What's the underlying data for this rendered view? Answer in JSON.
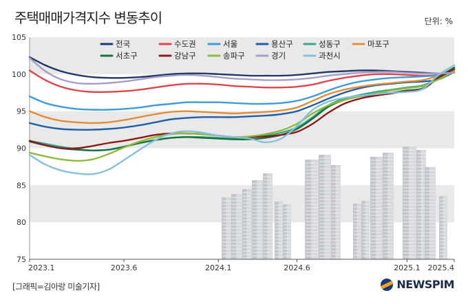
{
  "title": "주택매매가격지수 변동추이",
  "unit": "단위: %",
  "credit": "[그래픽=김아랑 미술기자]",
  "brand": "NEWSPIM",
  "chart_data": {
    "type": "line",
    "title": "주택매매가격지수 변동추이",
    "ylim": [
      75,
      105
    ],
    "yticks": [
      75,
      80,
      85,
      90,
      95,
      100,
      105
    ],
    "xlim": [
      0,
      27
    ],
    "x": [
      0,
      1,
      2,
      3,
      4,
      5,
      6,
      7,
      8,
      9,
      10,
      11,
      12,
      13,
      14,
      15,
      16,
      17,
      18,
      19,
      20,
      21,
      22,
      23,
      24,
      25,
      26,
      27
    ],
    "xticks": [
      {
        "x": 0,
        "label": "2023.1"
      },
      {
        "x": 6,
        "label": "2023.6"
      },
      {
        "x": 12,
        "label": "2024.1"
      },
      {
        "x": 17,
        "label": "2024.6"
      },
      {
        "x": 24,
        "label": "2025.1"
      },
      {
        "x": 27,
        "label": "2025.4"
      }
    ],
    "series": [
      {
        "name": "전국",
        "color": "#1f3864",
        "values": [
          102.3,
          101.2,
          100.4,
          99.9,
          99.6,
          99.5,
          99.5,
          99.6,
          99.8,
          100.0,
          100.1,
          100.1,
          100.0,
          99.9,
          99.8,
          99.8,
          99.8,
          99.9,
          100.1,
          100.3,
          100.4,
          100.5,
          100.5,
          100.4,
          100.3,
          100.2,
          100.1,
          100.2
        ]
      },
      {
        "name": "수도권",
        "color": "#e0444b",
        "values": [
          100.5,
          99.2,
          98.3,
          97.8,
          97.6,
          97.6,
          97.7,
          97.9,
          98.2,
          98.5,
          98.7,
          98.7,
          98.6,
          98.4,
          98.3,
          98.2,
          98.2,
          98.3,
          98.6,
          99.1,
          99.5,
          99.8,
          100.0,
          100.0,
          99.9,
          99.8,
          99.9,
          100.3
        ]
      },
      {
        "name": "서울",
        "color": "#3d9bd6",
        "values": [
          97.0,
          96.1,
          95.6,
          95.3,
          95.2,
          95.2,
          95.3,
          95.5,
          95.8,
          96.0,
          96.2,
          96.2,
          96.2,
          96.1,
          96.0,
          96.0,
          96.1,
          96.4,
          97.0,
          97.8,
          98.5,
          99.0,
          99.3,
          99.5,
          99.6,
          99.7,
          99.9,
          100.6
        ]
      },
      {
        "name": "용산구",
        "color": "#1f5fa8",
        "values": [
          93.4,
          92.9,
          92.6,
          92.5,
          92.5,
          92.6,
          92.8,
          93.1,
          93.5,
          93.9,
          94.1,
          94.2,
          94.2,
          94.2,
          94.3,
          94.4,
          94.6,
          95.0,
          95.8,
          96.7,
          97.5,
          98.1,
          98.5,
          98.7,
          98.9,
          99.0,
          99.3,
          100.3
        ]
      },
      {
        "name": "성동구",
        "color": "#3aa38a",
        "values": [
          91.0,
          90.6,
          90.2,
          89.9,
          89.7,
          89.8,
          90.2,
          90.7,
          91.1,
          91.4,
          91.5,
          91.5,
          91.4,
          91.3,
          91.4,
          91.7,
          92.1,
          92.8,
          94.2,
          95.8,
          96.7,
          97.2,
          97.6,
          97.9,
          98.2,
          98.5,
          99.4,
          100.6
        ]
      },
      {
        "name": "마포구",
        "color": "#e78a34",
        "values": [
          95.0,
          94.2,
          93.7,
          93.5,
          93.4,
          93.5,
          93.8,
          94.2,
          94.6,
          94.9,
          95.0,
          94.9,
          94.8,
          94.7,
          94.8,
          94.9,
          95.1,
          95.5,
          96.4,
          97.3,
          97.9,
          98.3,
          98.6,
          98.8,
          99.0,
          99.2,
          99.8,
          100.6
        ]
      },
      {
        "name": "서초구",
        "color": "#15723f",
        "values": [
          90.9,
          90.4,
          90.0,
          89.8,
          89.7,
          89.8,
          90.2,
          90.7,
          91.1,
          91.4,
          91.5,
          91.4,
          91.3,
          91.2,
          91.2,
          91.4,
          91.8,
          92.6,
          94.0,
          95.6,
          96.5,
          97.0,
          97.3,
          97.5,
          97.8,
          98.1,
          99.6,
          100.9
        ]
      },
      {
        "name": "강남구",
        "color": "#8b1a1a",
        "values": [
          91.0,
          90.4,
          90.0,
          90.0,
          90.3,
          90.7,
          91.0,
          91.4,
          91.8,
          92.0,
          92.0,
          91.9,
          91.7,
          91.5,
          91.5,
          91.6,
          91.8,
          92.2,
          93.3,
          94.8,
          96.0,
          96.7,
          97.1,
          97.4,
          97.7,
          98.0,
          99.5,
          100.7
        ]
      },
      {
        "name": "송파구",
        "color": "#8dba3b",
        "values": [
          89.4,
          88.9,
          88.5,
          88.3,
          88.5,
          89.2,
          90.1,
          90.9,
          91.5,
          91.9,
          92.0,
          91.9,
          91.7,
          91.5,
          91.6,
          91.9,
          92.4,
          93.3,
          94.7,
          95.8,
          96.5,
          97.0,
          97.4,
          97.8,
          98.1,
          98.4,
          99.3,
          100.4
        ]
      },
      {
        "name": "경기",
        "color": "#a99bc8",
        "values": [
          102.2,
          100.4,
          99.3,
          98.8,
          98.7,
          98.8,
          99.0,
          99.3,
          99.6,
          99.8,
          99.9,
          99.8,
          99.6,
          99.4,
          99.3,
          99.2,
          99.2,
          99.3,
          99.5,
          99.8,
          100.0,
          100.2,
          100.3,
          100.3,
          100.2,
          100.1,
          100.1,
          100.2
        ]
      },
      {
        "name": "과천시",
        "color": "#86c0dc",
        "values": [
          89.1,
          87.8,
          87.0,
          86.6,
          86.5,
          87.1,
          88.4,
          89.8,
          91.1,
          92.0,
          92.3,
          92.1,
          91.7,
          91.5,
          91.3,
          90.8,
          91.3,
          93.0,
          95.2,
          96.3,
          96.8,
          97.1,
          97.3,
          97.5,
          97.6,
          98.0,
          99.9,
          101.2
        ]
      }
    ]
  }
}
